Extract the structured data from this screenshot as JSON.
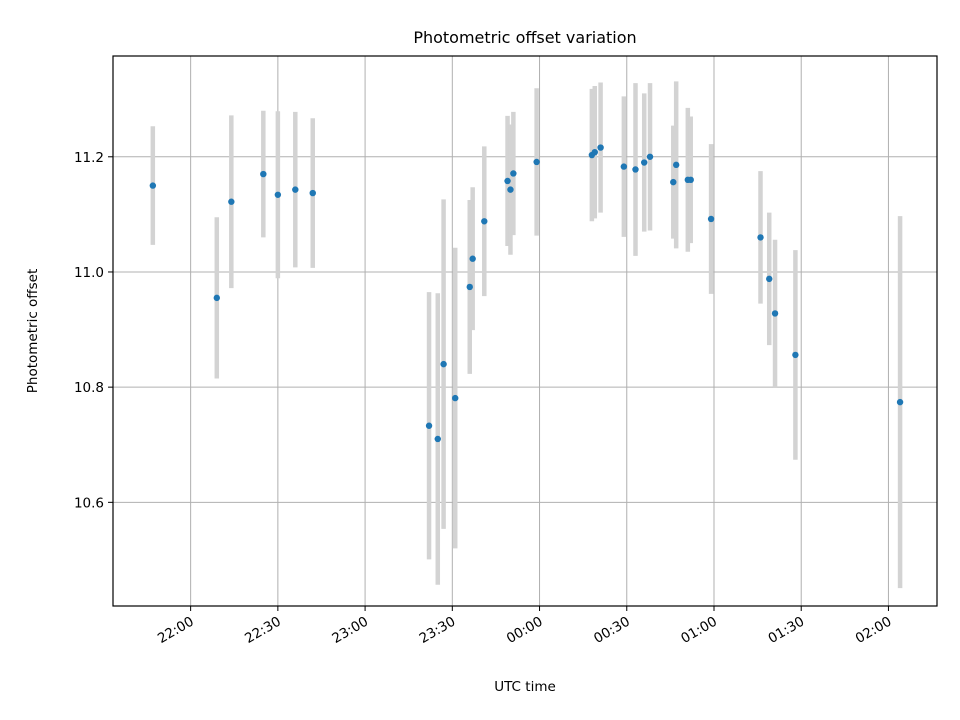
{
  "chart_data": {
    "type": "scatter",
    "title": "Photometric offset variation",
    "xlabel": "UTC time",
    "ylabel": "Photometric offset",
    "grid": true,
    "x_ticks": [
      "22:00",
      "22:30",
      "23:00",
      "23:30",
      "00:00",
      "00:30",
      "01:00",
      "01:30",
      "02:00"
    ],
    "y_ticks": [
      "10.6",
      "10.8",
      "11.0",
      "11.2"
    ],
    "xlim_minutes_from_22": [
      -26.7,
      256.7
    ],
    "ylim": [
      10.42,
      11.375
    ],
    "colors": {
      "point": "#1f77b4",
      "errorbar": "#d3d3d3",
      "grid": "#b0b0b0"
    },
    "points": [
      {
        "t": "21:47",
        "y": 11.15,
        "err": 0.103
      },
      {
        "t": "22:09",
        "y": 10.955,
        "err": 0.14
      },
      {
        "t": "22:14",
        "y": 11.122,
        "err": 0.15
      },
      {
        "t": "22:25",
        "y": 11.17,
        "err": 0.11
      },
      {
        "t": "22:30",
        "y": 11.134,
        "err": 0.145
      },
      {
        "t": "22:36",
        "y": 11.143,
        "err": 0.135
      },
      {
        "t": "22:42",
        "y": 11.137,
        "err": 0.13
      },
      {
        "t": "23:22",
        "y": 10.733,
        "err": 0.232
      },
      {
        "t": "23:25",
        "y": 10.71,
        "err": 0.253
      },
      {
        "t": "23:27",
        "y": 10.84,
        "err": 0.286
      },
      {
        "t": "23:31",
        "y": 10.781,
        "err": 0.261
      },
      {
        "t": "23:36",
        "y": 10.974,
        "err": 0.151
      },
      {
        "t": "23:37",
        "y": 11.023,
        "err": 0.124
      },
      {
        "t": "23:41",
        "y": 11.088,
        "err": 0.13
      },
      {
        "t": "23:49",
        "y": 11.158,
        "err": 0.113
      },
      {
        "t": "23:50",
        "y": 11.143,
        "err": 0.113
      },
      {
        "t": "23:51",
        "y": 11.171,
        "err": 0.107
      },
      {
        "t": "23:59",
        "y": 11.191,
        "err": 0.128
      },
      {
        "t": "00:18",
        "y": 11.203,
        "err": 0.115
      },
      {
        "t": "00:19",
        "y": 11.208,
        "err": 0.115
      },
      {
        "t": "00:21",
        "y": 11.216,
        "err": 0.113
      },
      {
        "t": "00:29",
        "y": 11.183,
        "err": 0.122
      },
      {
        "t": "00:33",
        "y": 11.178,
        "err": 0.15
      },
      {
        "t": "00:36",
        "y": 11.19,
        "err": 0.12
      },
      {
        "t": "00:38",
        "y": 11.2,
        "err": 0.128
      },
      {
        "t": "00:46",
        "y": 11.156,
        "err": 0.098
      },
      {
        "t": "00:47",
        "y": 11.186,
        "err": 0.145
      },
      {
        "t": "00:51",
        "y": 11.16,
        "err": 0.125
      },
      {
        "t": "00:52",
        "y": 11.16,
        "err": 0.11
      },
      {
        "t": "00:59",
        "y": 11.092,
        "err": 0.13
      },
      {
        "t": "01:16",
        "y": 11.06,
        "err": 0.115
      },
      {
        "t": "01:19",
        "y": 10.988,
        "err": 0.115
      },
      {
        "t": "01:21",
        "y": 10.928,
        "err": 0.128
      },
      {
        "t": "01:28",
        "y": 10.856,
        "err": 0.182
      },
      {
        "t": "02:04",
        "y": 10.774,
        "err": 0.323
      }
    ]
  }
}
